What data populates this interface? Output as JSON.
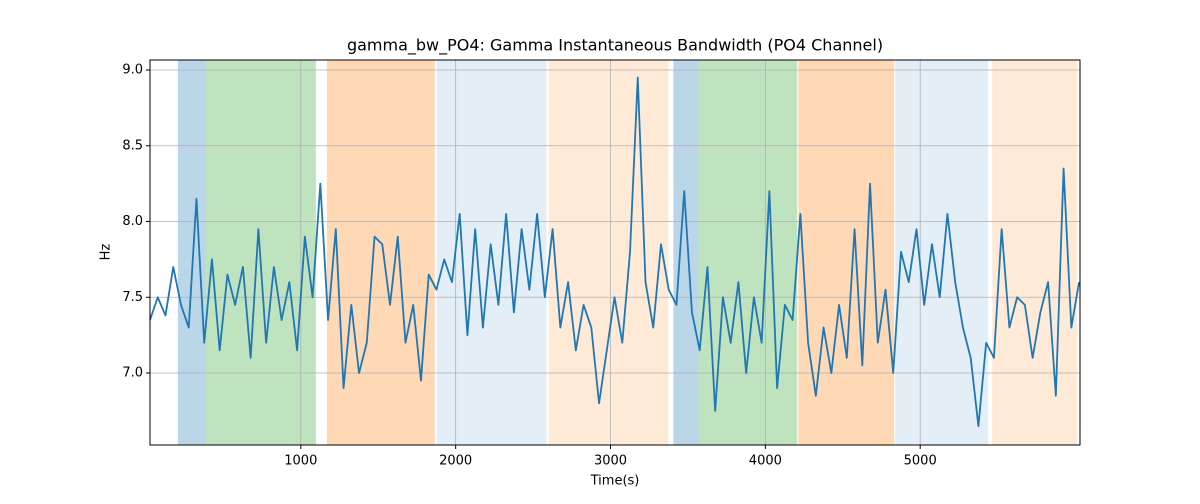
{
  "chart_data": {
    "type": "line",
    "title": "gamma_bw_PO4: Gamma Instantaneous Bandwidth (PO4 Channel)",
    "x_label": "Time(s)",
    "y_label": "Hz",
    "xlim": [
      26,
      6032
    ],
    "ylim": [
      6.525,
      9.066
    ],
    "xticks": [
      1000,
      2000,
      3000,
      4000,
      5000
    ],
    "yticks": [
      {
        "value": 7,
        "label": "7.0"
      },
      7.5,
      {
        "value": 8,
        "label": "8.0"
      },
      8.5,
      {
        "value": 9,
        "label": "9.0"
      }
    ],
    "grid": true,
    "color": "#1f77b4",
    "spans": [
      {
        "start": 206,
        "end": 387,
        "color": "#1f77b4",
        "opacity": 0.3
      },
      {
        "start": 387,
        "end": 1097,
        "color": "#2ca02c",
        "opacity": 0.3
      },
      {
        "start": 1168,
        "end": 1865,
        "color": "#ff7f0e",
        "opacity": 0.3
      },
      {
        "start": 1877,
        "end": 2587,
        "color": "#1f77b4",
        "opacity": 0.12
      },
      {
        "start": 2600,
        "end": 3374,
        "color": "#ff7f0e",
        "opacity": 0.16
      },
      {
        "start": 3406,
        "end": 3568,
        "color": "#1f77b4",
        "opacity": 0.3
      },
      {
        "start": 3568,
        "end": 4206,
        "color": "#2ca02c",
        "opacity": 0.3
      },
      {
        "start": 4213,
        "end": 4832,
        "color": "#ff7f0e",
        "opacity": 0.3
      },
      {
        "start": 4839,
        "end": 5439,
        "color": "#1f77b4",
        "opacity": 0.12
      },
      {
        "start": 5465,
        "end": 6013,
        "color": "#ff7f0e",
        "opacity": 0.16
      }
    ],
    "x": [
      26,
      76,
      126,
      176,
      226,
      276,
      326,
      376,
      426,
      476,
      526,
      576,
      626,
      676,
      726,
      776,
      826,
      876,
      926,
      976,
      1026,
      1076,
      1126,
      1176,
      1226,
      1276,
      1326,
      1376,
      1426,
      1476,
      1526,
      1576,
      1626,
      1676,
      1726,
      1776,
      1826,
      1876,
      1926,
      1976,
      2026,
      2076,
      2126,
      2176,
      2226,
      2276,
      2326,
      2376,
      2426,
      2476,
      2526,
      2576,
      2626,
      2676,
      2726,
      2776,
      2826,
      2876,
      2926,
      2976,
      3026,
      3076,
      3126,
      3176,
      3226,
      3276,
      3326,
      3376,
      3426,
      3476,
      3526,
      3576,
      3626,
      3676,
      3726,
      3776,
      3826,
      3876,
      3926,
      3976,
      4026,
      4076,
      4126,
      4176,
      4226,
      4276,
      4326,
      4376,
      4426,
      4476,
      4526,
      4576,
      4626,
      4676,
      4726,
      4776,
      4826,
      4876,
      4926,
      4976,
      5026,
      5076,
      5126,
      5176,
      5226,
      5276,
      5326,
      5376,
      5426,
      5476,
      5526,
      5576,
      5626,
      5676,
      5726,
      5776,
      5826,
      5876,
      5926,
      5976,
      6026
    ],
    "values": [
      7.35,
      7.5,
      7.38,
      7.7,
      7.45,
      7.3,
      8.15,
      7.2,
      7.75,
      7.15,
      7.65,
      7.45,
      7.7,
      7.1,
      7.95,
      7.2,
      7.7,
      7.35,
      7.6,
      7.15,
      7.9,
      7.5,
      8.25,
      7.35,
      7.95,
      6.9,
      7.45,
      7.0,
      7.2,
      7.9,
      7.85,
      7.45,
      7.9,
      7.2,
      7.45,
      6.95,
      7.65,
      7.55,
      7.75,
      7.6,
      8.05,
      7.25,
      7.95,
      7.3,
      7.85,
      7.45,
      8.05,
      7.4,
      7.95,
      7.55,
      8.05,
      7.5,
      7.95,
      7.3,
      7.6,
      7.15,
      7.45,
      7.3,
      6.8,
      7.15,
      7.5,
      7.2,
      7.8,
      8.95,
      7.6,
      7.3,
      7.85,
      7.55,
      7.45,
      8.2,
      7.4,
      7.15,
      7.7,
      6.75,
      7.5,
      7.2,
      7.6,
      7.0,
      7.5,
      7.2,
      8.2,
      6.9,
      7.45,
      7.35,
      8.05,
      7.2,
      6.85,
      7.3,
      7.0,
      7.45,
      7.1,
      7.95,
      7.05,
      8.25,
      7.2,
      7.55,
      7.0,
      7.8,
      7.6,
      7.95,
      7.45,
      7.85,
      7.5,
      8.05,
      7.6,
      7.3,
      7.1,
      6.65,
      7.2,
      7.1,
      7.95,
      7.3,
      7.5,
      7.45,
      7.1,
      7.4,
      7.6,
      6.85,
      8.35,
      7.3,
      7.6
    ]
  }
}
